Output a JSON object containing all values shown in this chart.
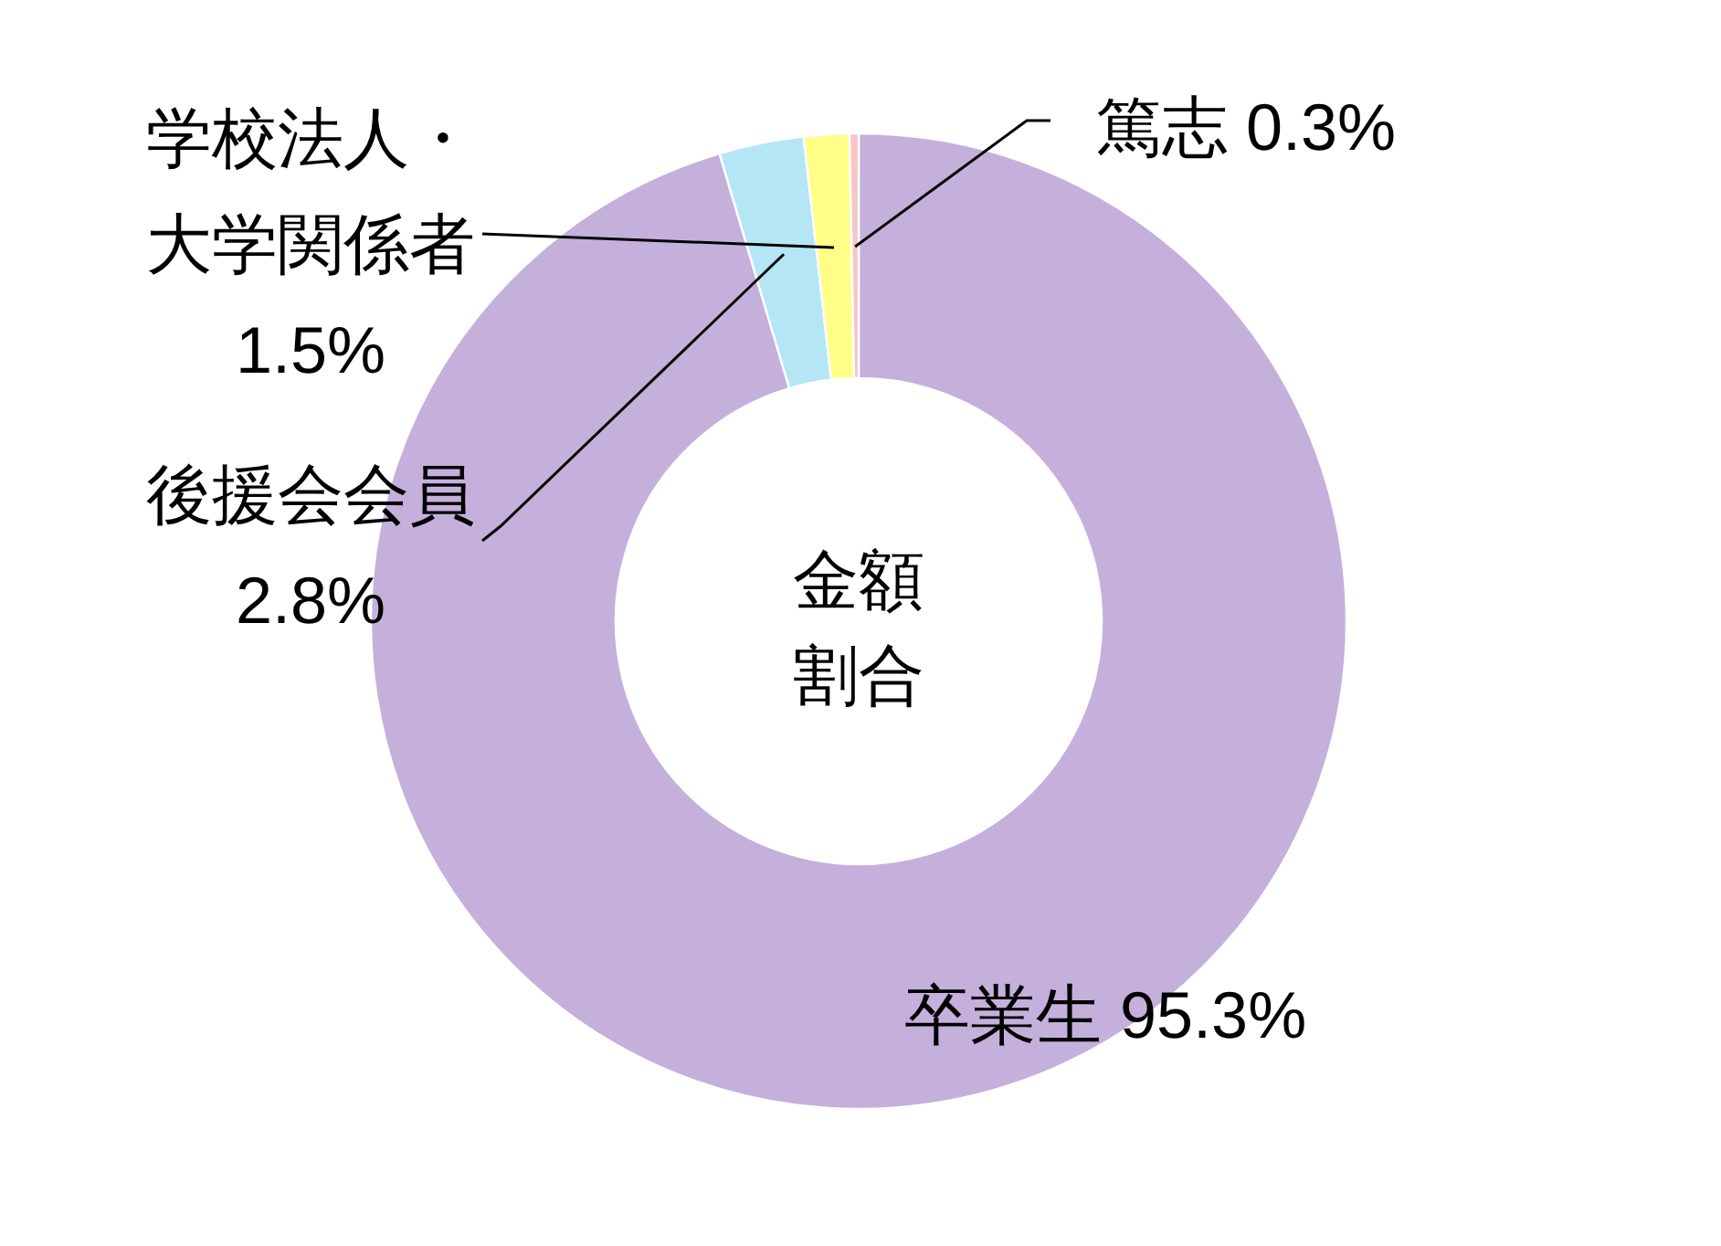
{
  "chart_data": {
    "type": "donut",
    "title": "金額割合",
    "categories": [
      "卒業生",
      "後援会会員",
      "学校法人・大学関係者",
      "篤志"
    ],
    "values": [
      95.3,
      2.8,
      1.5,
      0.3
    ],
    "value_labels": [
      "95.3%",
      "2.8%",
      "1.5%",
      "0.3%"
    ],
    "colors": [
      "#c5b0dc",
      "#b4e6f6",
      "#ffff88",
      "#f6c6c6"
    ],
    "legend": false
  }
}
